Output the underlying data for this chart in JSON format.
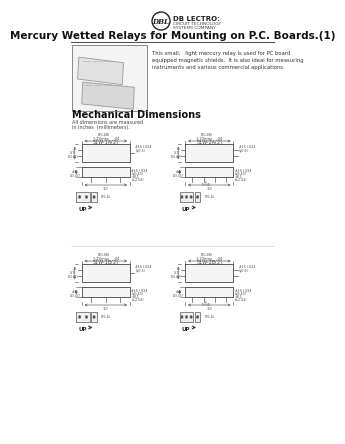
{
  "bg_color": "#ffffff",
  "title": "Mercury Wetted Relays for Mounting on P.C. Boards.(1)",
  "logo_text": "DB LECTRO:",
  "logo_sub1": "CIRCUIT TECHNOLOGY",
  "logo_sub2": "SYSTEMS COMPANY",
  "logo_oval": "DBL",
  "description": "This small,   light mercury relay is used for PC board\nequipped magnetic shields.  It is also ideal for measuring\ninstruments and various commercial applications.",
  "mech_title": "Mechanical Dimensions",
  "mech_sub1": "All dimensions are measured",
  "mech_sub2": "in inches  (millimeters).",
  "diag_labels": [
    "51W-1A(2)",
    "51W-2A(2)",
    "51W-1B(2)",
    "51W-2B(2)"
  ],
  "up_label": "UP",
  "line_color": "#555555",
  "text_color": "#333333",
  "dim_color": "#444444"
}
